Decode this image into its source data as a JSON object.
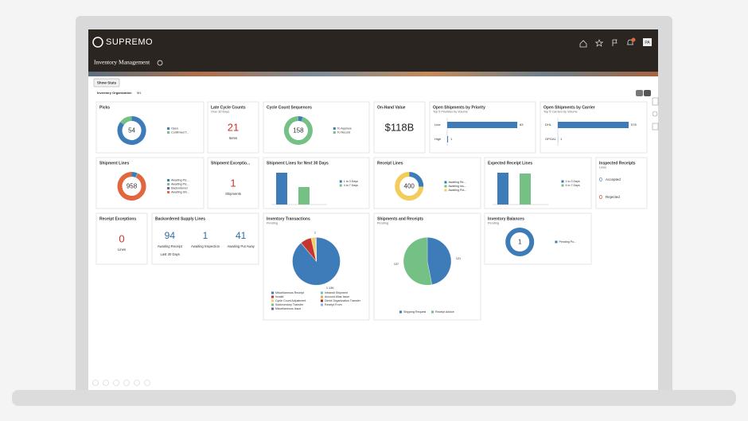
{
  "header": {
    "logo": "SUPREMO",
    "page_title": "Inventory Management",
    "user_initials": "PA"
  },
  "toolbar": {
    "button": "Show Stats",
    "org_label": "Inventory Organization",
    "org_value": "M1"
  },
  "cards": [
    {
      "title": "Picks",
      "kind": "donut",
      "center": 54,
      "segments": [
        {
          "name": "Open",
          "color": "#3d7cb8",
          "value": 46
        },
        {
          "name": "Confirmed T...",
          "color": "#74c085",
          "value": 8
        }
      ]
    },
    {
      "title": "Late Cycle Counts",
      "subtitle": "Over 30 Days",
      "kind": "metric",
      "value": 21,
      "value_color": "#c8342e",
      "caption": "Items"
    },
    {
      "title": "Cycle Count Sequences",
      "kind": "donut",
      "center": 158,
      "segments": [
        {
          "name": "To Approve",
          "color": "#3d7cb8",
          "value": 8
        },
        {
          "name": "To Record",
          "color": "#74c085",
          "value": 150
        }
      ]
    },
    {
      "title": "On-Hand Value",
      "kind": "metric",
      "value": "$118B",
      "value_color": "#222222"
    },
    {
      "title": "Open Shipments by Priority",
      "subtitle": "Top 5 Priorities by Volume",
      "kind": "hbar",
      "color": "#3d7cb8",
      "bars": [
        {
          "label": "Line",
          "value": 83
        },
        {
          "label": "High",
          "value": 1
        }
      ]
    },
    {
      "title": "Open Shipments by Carrier",
      "subtitle": "Top 5 Carriers by Volume",
      "kind": "hbar",
      "color": "#3d7cb8",
      "bars": [
        {
          "label": "DHL",
          "value": 578
        },
        {
          "label": "OPGA1",
          "value": 1
        }
      ]
    },
    {
      "title": "Shipment Lines",
      "kind": "donut",
      "center": 958,
      "segments": [
        {
          "name": "Awaiting Pic...",
          "color": "#3d7cb8",
          "value": 60
        },
        {
          "name": "Awaiting Pic...",
          "color": "#74c085",
          "value": 10
        },
        {
          "name": "Backordered",
          "color": "#7a5ca8",
          "value": 5
        },
        {
          "name": "Awaiting Shi...",
          "color": "#e2673f",
          "value": 883
        }
      ]
    },
    {
      "title": "Shipment Exceptio...",
      "kind": "metric",
      "value": 1,
      "value_color": "#c8342e",
      "caption": "Shipments"
    },
    {
      "title": "Shipment Lines for Next 30 Days",
      "kind": "vbar",
      "bars": [
        {
          "name": "1 to 3 Days",
          "color": "#3d7cb8",
          "value": 100
        },
        {
          "name": "4 to 7 Days",
          "color": "#74c085",
          "value": 55
        }
      ]
    },
    {
      "title": "Receipt Lines",
      "kind": "donut",
      "center": 400,
      "segments": [
        {
          "name": "Awaiting Re...",
          "color": "#3d7cb8",
          "value": 100
        },
        {
          "name": "Awaiting Ins...",
          "color": "#74c085",
          "value": 5
        },
        {
          "name": "Awaiting Put...",
          "color": "#f3cc5c",
          "value": 295
        }
      ]
    },
    {
      "title": "Expected Receipt Lines",
      "kind": "vbar",
      "bars": [
        {
          "name": "1 to 3 Days",
          "color": "#3d7cb8",
          "value": 40
        },
        {
          "name": "4 to 7 Days",
          "color": "#74c085",
          "value": 39
        }
      ]
    },
    {
      "title": "Inspected Receipts",
      "subtitle": "Lines",
      "kind": "list",
      "items": [
        {
          "value": 0,
          "label": "Accepted",
          "color": "#3d7cb8"
        },
        {
          "value": 0,
          "label": "Rejected",
          "color": "#c8342e"
        }
      ]
    },
    {
      "title": "Receipt Exceptions",
      "kind": "metric",
      "value": 0,
      "value_color": "#c8342e",
      "caption": "Lines"
    },
    {
      "title": "Backordered Supply Lines",
      "kind": "multi",
      "footnote": "Last 30 Days",
      "items": [
        {
          "value": 94,
          "label": "Awaiting Receipt"
        },
        {
          "value": 1,
          "label": "Awaiting Inspection"
        },
        {
          "value": 41,
          "label": "Awaiting Put Away"
        }
      ]
    },
    {
      "title": "Inventory Transactions",
      "subtitle": "Pending",
      "kind": "pie",
      "slices": [
        {
          "name": "Miscellaneous Receipt",
          "color": "#3d7cb8",
          "value": 1130,
          "label": "1.13K"
        },
        {
          "name": "Intransit Shipment",
          "color": "#65c3c3",
          "value": 2
        },
        {
          "name": "Invalid",
          "color": "#c8342e",
          "value": 95
        },
        {
          "name": "Account Alias Issue",
          "color": "#f0a23c",
          "value": 5
        },
        {
          "name": "Cycle Count Adjustment",
          "color": "#f3cc5c",
          "value": 30
        },
        {
          "name": "Direct Organization Transfer",
          "color": "#9b2a2a",
          "value": 4
        },
        {
          "name": "Subinventory Transfer",
          "color": "#74c085",
          "value": 3
        },
        {
          "name": "Receipt From",
          "color": "#7fb6e0",
          "value": 1,
          "label": "1"
        },
        {
          "name": "Miscellaneous Issue",
          "color": "#7a5ca8",
          "value": 2
        }
      ]
    },
    {
      "title": "Shipments and Receipts",
      "subtitle": "Pending",
      "kind": "pie",
      "slices": [
        {
          "name": "Shipping Request",
          "color": "#3d7cb8",
          "value": 121
        },
        {
          "name": "Receipt Advice",
          "color": "#74c085",
          "value": 137
        }
      ]
    },
    {
      "title": "Inventory Balances",
      "subtitle": "Pending",
      "kind": "donut",
      "center": 1,
      "segments": [
        {
          "name": "Pending Po...",
          "color": "#3d7cb8",
          "value": 1
        }
      ]
    }
  ]
}
